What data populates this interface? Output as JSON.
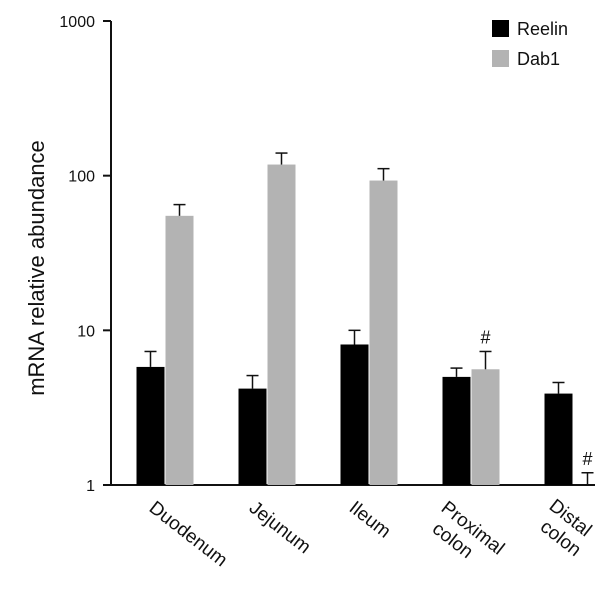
{
  "chart_data": {
    "type": "bar",
    "title": "",
    "xlabel": "",
    "ylabel": "mRNA relative abundance",
    "yscale": "log",
    "ylim": [
      1,
      1000
    ],
    "yticks": [
      1,
      10,
      100,
      1000
    ],
    "ytick_labels": [
      "1",
      "10",
      "100",
      "1000"
    ],
    "categories": [
      [
        "Duodenum"
      ],
      [
        "Jejunum"
      ],
      [
        "Ileum"
      ],
      [
        "Proximal",
        "colon"
      ],
      [
        "Distal",
        "colon"
      ]
    ],
    "series": [
      {
        "name": "Reelin",
        "color": "#000000",
        "values": [
          5.8,
          4.2,
          8.1,
          5.0,
          3.9
        ],
        "error_upper": [
          7.3,
          5.1,
          10.0,
          5.7,
          4.6
        ]
      },
      {
        "name": "Dab1",
        "color": "#b3b3b3",
        "values": [
          55,
          118,
          93,
          5.6,
          1.0
        ],
        "error_upper": [
          65,
          140,
          111,
          7.3,
          1.2
        ]
      }
    ],
    "annotations": [
      {
        "text": "#",
        "category_index": 3,
        "series_index": 1
      },
      {
        "text": "#",
        "category_index": 4,
        "series_index": 1
      }
    ],
    "legend": {
      "position": "top-right",
      "entries": [
        "Reelin",
        "Dab1"
      ]
    },
    "grid": false
  }
}
